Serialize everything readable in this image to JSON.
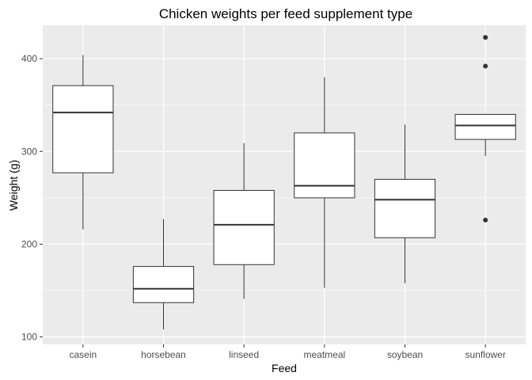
{
  "chart_data": {
    "type": "boxplot",
    "title": "Chicken weights per feed supplement type",
    "xlabel": "Feed",
    "ylabel": "Weight (g)",
    "categories": [
      "casein",
      "horsebean",
      "linseed",
      "meatmeal",
      "soybean",
      "sunflower"
    ],
    "yticks": [
      100,
      200,
      300,
      400
    ],
    "ylim": [
      92,
      436
    ],
    "grid": true,
    "boxes": [
      {
        "category": "casein",
        "min": 216,
        "q1": 277,
        "median": 342,
        "q3": 371,
        "max": 404,
        "outliers": []
      },
      {
        "category": "horsebean",
        "min": 108,
        "q1": 137,
        "median": 152,
        "q3": 176,
        "max": 227,
        "outliers": []
      },
      {
        "category": "linseed",
        "min": 141,
        "q1": 178,
        "median": 221,
        "q3": 258,
        "max": 309,
        "outliers": []
      },
      {
        "category": "meatmeal",
        "min": 153,
        "q1": 250,
        "median": 263,
        "q3": 320,
        "max": 380,
        "outliers": []
      },
      {
        "category": "soybean",
        "min": 158,
        "q1": 207,
        "median": 248,
        "q3": 270,
        "max": 329,
        "outliers": []
      },
      {
        "category": "sunflower",
        "min": 295,
        "q1": 313,
        "median": 328,
        "q3": 340,
        "max": 340,
        "outliers": [
          226,
          392,
          423
        ]
      }
    ],
    "colors": {
      "panel": "#ebebeb",
      "grid": "#ffffff",
      "box_fill": "#ffffff",
      "box_stroke": "#333333",
      "tick": "#333333",
      "outlier": "#333333"
    }
  }
}
